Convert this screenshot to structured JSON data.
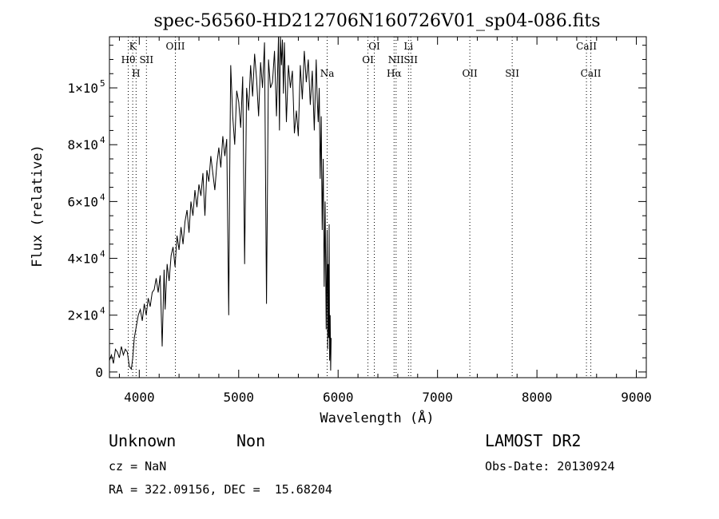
{
  "chart_data": {
    "type": "line",
    "title": "spec-56560-HD212706N160726V01_sp04-086.fits",
    "xlabel": "Wavelength (Å)",
    "ylabel": "Flux (relative)",
    "xlim": [
      3700,
      9100
    ],
    "ylim": [
      -2000,
      118000
    ],
    "x_ticks": [
      4000,
      5000,
      6000,
      7000,
      8000,
      9000
    ],
    "x_tick_labels": [
      "4000",
      "5000",
      "6000",
      "7000",
      "8000",
      "9000"
    ],
    "y_ticks": [
      0,
      20000,
      40000,
      60000,
      80000,
      100000
    ],
    "y_tick_labels": [
      {
        "mant": "0",
        "exp": ""
      },
      {
        "mant": "2×10",
        "exp": "4"
      },
      {
        "mant": "4×10",
        "exp": "4"
      },
      {
        "mant": "6×10",
        "exp": "4"
      },
      {
        "mant": "8×10",
        "exp": "4"
      },
      {
        "mant": "1×10",
        "exp": "5"
      }
    ],
    "grid": false,
    "series": [
      {
        "x": [
          3700,
          3720,
          3740,
          3760,
          3780,
          3800,
          3820,
          3840,
          3860,
          3880,
          3900,
          3920,
          3935,
          3950,
          3970,
          3990,
          4010,
          4030,
          4050,
          4070,
          4090,
          4110,
          4130,
          4150,
          4170,
          4190,
          4210,
          4230,
          4250,
          4260,
          4280,
          4300,
          4320,
          4340,
          4360,
          4380,
          4400,
          4420,
          4440,
          4460,
          4480,
          4500,
          4520,
          4540,
          4560,
          4580,
          4600,
          4620,
          4640,
          4660,
          4680,
          4700,
          4720,
          4740,
          4760,
          4780,
          4800,
          4820,
          4840,
          4860,
          4880,
          4900,
          4910,
          4920,
          4940,
          4960,
          4980,
          5000,
          5020,
          5040,
          5060,
          5080,
          5100,
          5120,
          5140,
          5160,
          5180,
          5200,
          5220,
          5240,
          5260,
          5280,
          5300,
          5320,
          5340,
          5360,
          5380,
          5400,
          5410,
          5420,
          5430,
          5440,
          5450,
          5460,
          5480,
          5500,
          5520,
          5540,
          5560,
          5580,
          5600,
          5620,
          5640,
          5660,
          5680,
          5700,
          5720,
          5740,
          5760,
          5780,
          5790,
          5800,
          5810,
          5820,
          5830,
          5840,
          5850,
          5860,
          5870,
          5880,
          5890,
          5895,
          5900,
          5905,
          5910,
          5915,
          5920,
          5925,
          5930
        ],
        "y": [
          4000,
          6000,
          3000,
          8000,
          7000,
          5000,
          9000,
          6000,
          8000,
          7000,
          2000,
          1000,
          5000,
          12000,
          16000,
          20000,
          22000,
          18000,
          24000,
          20000,
          26000,
          23000,
          28000,
          29000,
          33000,
          28000,
          34000,
          9000,
          36000,
          22000,
          38000,
          32000,
          41000,
          44000,
          37000,
          48000,
          43000,
          51000,
          45000,
          53000,
          57000,
          49000,
          60000,
          55000,
          64000,
          58000,
          66000,
          62000,
          70000,
          55000,
          71000,
          67000,
          76000,
          70000,
          64000,
          73000,
          79000,
          72000,
          83000,
          76000,
          82000,
          20000,
          72000,
          108000,
          90000,
          80000,
          99000,
          95000,
          86000,
          104000,
          38000,
          100000,
          92000,
          108000,
          97000,
          112000,
          103000,
          90000,
          109000,
          100000,
          116000,
          24000,
          110000,
          100000,
          102000,
          113000,
          90000,
          118000,
          85000,
          120000,
          108000,
          117000,
          98000,
          116000,
          88000,
          108000,
          100000,
          106000,
          84000,
          92000,
          83000,
          108000,
          96000,
          113000,
          102000,
          110000,
          94000,
          106000,
          85000,
          110000,
          96000,
          88000,
          100000,
          68000,
          90000,
          50000,
          75000,
          30000,
          60000,
          15000,
          50000,
          8000,
          38000,
          12000,
          52000,
          4000,
          20000,
          500,
          12000
        ]
      }
    ],
    "line_labels": [
      {
        "wl": 3889,
        "text": "Hθ",
        "row": 2
      },
      {
        "wl": 3934,
        "text": "K",
        "row": 1
      },
      {
        "wl": 3968,
        "text": "H",
        "row": 3
      },
      {
        "wl": 4072,
        "text": "SII",
        "row": 2
      },
      {
        "wl": 4363,
        "text": "OIII",
        "row": 1
      },
      {
        "wl": 5890,
        "text": "Na",
        "row": 3
      },
      {
        "wl": 6300,
        "text": "OI",
        "row": 2
      },
      {
        "wl": 6364,
        "text": "OI",
        "row": 1
      },
      {
        "wl": 6563,
        "text": "Hα",
        "row": 3
      },
      {
        "wl": 6583,
        "text": "NII",
        "row": 2
      },
      {
        "wl": 6708,
        "text": "Li",
        "row": 1
      },
      {
        "wl": 6731,
        "text": "SII",
        "row": 2
      },
      {
        "wl": 7325,
        "text": "OII",
        "row": 3
      },
      {
        "wl": 7751,
        "text": "SII",
        "row": 3
      },
      {
        "wl": 8498,
        "text": "CaII",
        "row": 1
      },
      {
        "wl": 8542,
        "text": "CaII",
        "row": 3
      }
    ],
    "line_markers": [
      3889,
      3934,
      3968,
      4072,
      4363,
      5890,
      6300,
      6364,
      6563,
      6583,
      6708,
      6731,
      7325,
      7751,
      8498,
      8542
    ]
  },
  "info": {
    "class": "Unknown",
    "subclass": "Non",
    "survey": "LAMOST DR2",
    "cz": "cz = NaN",
    "obs_date": "Obs-Date: 20130924",
    "coords": "RA = 322.09156, DEC =  15.68204"
  }
}
